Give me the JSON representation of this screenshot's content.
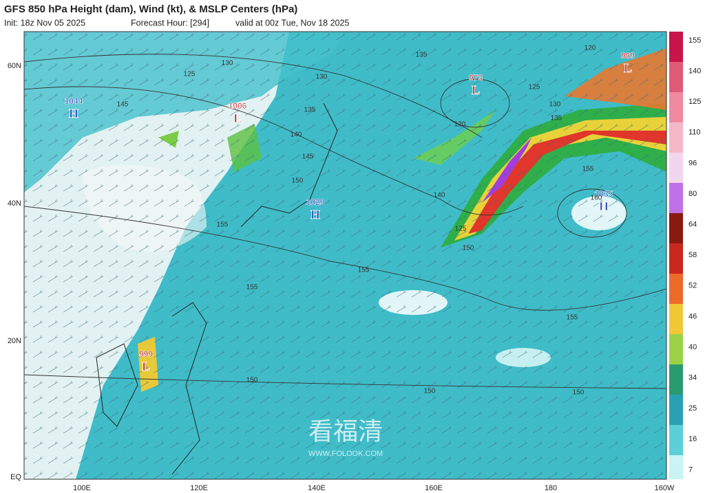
{
  "header": {
    "title": "GFS 850 hPa Height (dam), Wind (kt), & MSLP Centers (hPa)",
    "init": "Init: 18z Nov 05 2025",
    "forecast_hour": "Forecast Hour: [294]",
    "valid": "valid at 00z Tue, Nov 18 2025"
  },
  "map": {
    "lat_labels": [
      "60N",
      "40N",
      "20N",
      "EQ"
    ],
    "lon_labels": [
      "100E",
      "120E",
      "140E",
      "160E",
      "180",
      "160W"
    ],
    "centers": [
      {
        "label": "H",
        "value": 1044
      },
      {
        "label": "L",
        "value": 1006
      },
      {
        "label": "H",
        "value": 1029
      },
      {
        "label": "L",
        "value": 973
      },
      {
        "label": "L",
        "value": 969
      },
      {
        "label": "H",
        "value": 1035
      },
      {
        "label": "L",
        "value": 999
      }
    ],
    "contour_labels": [
      135,
      130,
      125,
      145,
      130,
      135,
      140,
      145,
      150,
      155,
      140,
      155,
      160,
      135,
      155,
      155,
      155,
      150,
      150,
      150,
      120,
      125,
      130,
      120,
      125,
      150
    ]
  },
  "colorbar": {
    "ticks": [
      155,
      140,
      125,
      110,
      96,
      80,
      64,
      58,
      52,
      46,
      40,
      34,
      25,
      16,
      7
    ]
  },
  "watermark": {
    "name": "看福清",
    "site": "WWW.FOLOOK.COM"
  }
}
